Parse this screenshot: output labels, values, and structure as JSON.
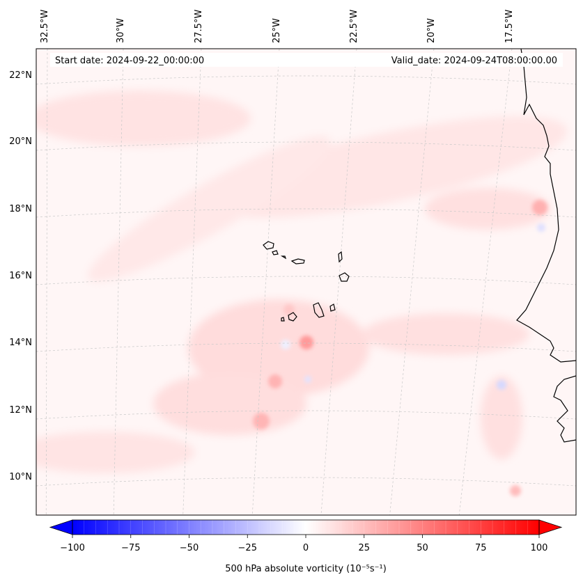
{
  "map": {
    "projection": "lambert-conformal",
    "extent": {
      "lon_min": -33.0,
      "lon_max": -15.5,
      "lat_min": 8.8,
      "lat_max": 22.8
    },
    "start_date_text": "Start date: 2024-09-22_00:00:00",
    "valid_date_text": "Valid_date: 2024-09-24T08:00:00.00",
    "gridlines": true,
    "longitude_labels": [
      {
        "lon": -32.5,
        "text": "32.5°W"
      },
      {
        "lon": -30.0,
        "text": "30°W"
      },
      {
        "lon": -27.5,
        "text": "27.5°W"
      },
      {
        "lon": -25.0,
        "text": "25°W"
      },
      {
        "lon": -22.5,
        "text": "22.5°W"
      },
      {
        "lon": -20.0,
        "text": "20°W"
      },
      {
        "lon": -17.5,
        "text": "17.5°W"
      }
    ],
    "latitude_labels": [
      {
        "lat": 22,
        "text": "22°N"
      },
      {
        "lat": 20,
        "text": "20°N"
      },
      {
        "lat": 18,
        "text": "18°N"
      },
      {
        "lat": 16,
        "text": "16°N"
      },
      {
        "lat": 14,
        "text": "14°N"
      },
      {
        "lat": 12,
        "text": "12°N"
      },
      {
        "lat": 10,
        "text": "10°N"
      }
    ],
    "features": [
      "West African coastline",
      "Cape Verde Islands"
    ]
  },
  "colorbar": {
    "label": "500 hPa absolute vorticity (10⁻⁵s⁻¹)",
    "min": -100,
    "max": 100,
    "ticks": [
      {
        "value": -100,
        "text": "−100"
      },
      {
        "value": -75,
        "text": "−75"
      },
      {
        "value": -50,
        "text": "−50"
      },
      {
        "value": -25,
        "text": "−25"
      },
      {
        "value": 0,
        "text": "0"
      },
      {
        "value": 25,
        "text": "25"
      },
      {
        "value": 50,
        "text": "50"
      },
      {
        "value": 75,
        "text": "75"
      },
      {
        "value": 100,
        "text": "100"
      }
    ],
    "colormap": "bwr",
    "color_min": "#0000ff",
    "color_mid": "#ffffff",
    "color_max": "#ff0000",
    "extend": "both"
  },
  "chart_data": {
    "type": "heatmap",
    "variable": "500 hPa absolute vorticity",
    "units": "10⁻⁵s⁻¹",
    "value_range": [
      -100,
      100
    ],
    "features": [
      {
        "lat": 13.95,
        "lon": -24.0,
        "value": 45
      },
      {
        "lat": 14.4,
        "lon": -25.2,
        "value": 20
      },
      {
        "lat": 12.9,
        "lon": -25.3,
        "value": 25
      },
      {
        "lat": 11.7,
        "lon": -25.8,
        "value": 30
      },
      {
        "lat": 17.97,
        "lon": -16.6,
        "value": 35
      },
      {
        "lat": 9.6,
        "lon": -17.5,
        "value": 20
      },
      {
        "lat": 12.5,
        "lon": -17.9,
        "value": -15
      },
      {
        "lat": 17.3,
        "lon": -16.5,
        "value": -10
      },
      {
        "lat": 13.2,
        "lon": -24.0,
        "value": -10
      }
    ]
  }
}
